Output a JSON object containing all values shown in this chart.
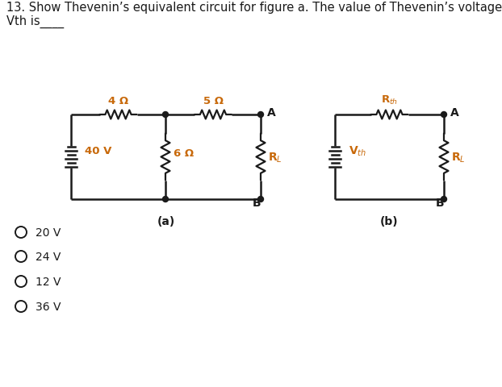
{
  "title_line1": "13. Show Thevenin’s equivalent circuit for figure a. The value of Thevenin’s voltage",
  "title_line2": "Vth is____",
  "label_a": "(a)",
  "label_b": "(b)",
  "options": [
    "20 V",
    "24 V",
    "12 V",
    "36 V"
  ],
  "bg_color": "#ffffff",
  "line_color": "#1a1a1a",
  "text_color": "#1a1a1a",
  "label_color": "#c8690a",
  "font_size_title": 10.5,
  "font_size_labels": 9.5,
  "font_size_options": 10
}
